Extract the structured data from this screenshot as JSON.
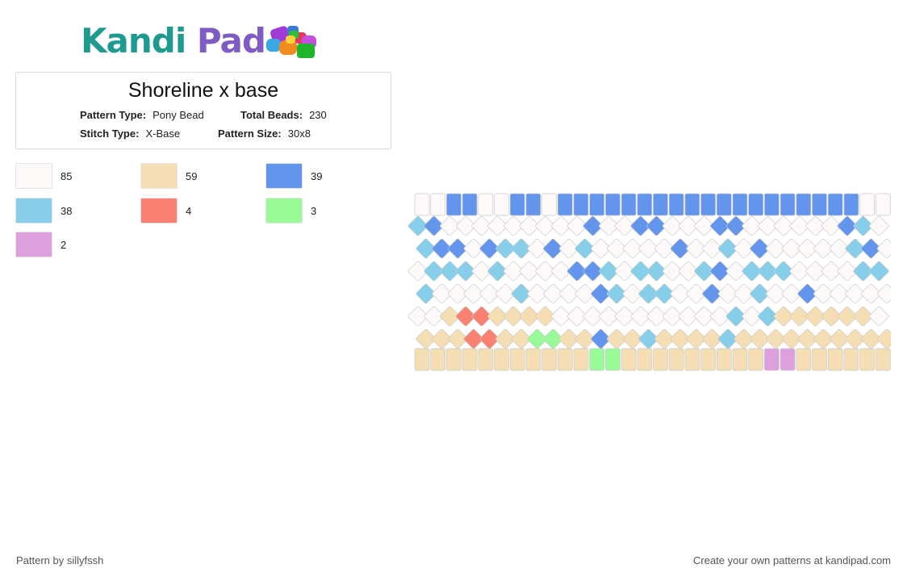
{
  "logo": {
    "part1": "Kandi",
    "part2": "Pad",
    "beads_icon": "bead-pile-icon"
  },
  "pattern_info": {
    "title": "Shoreline x base",
    "pattern_type_label": "Pattern Type:",
    "pattern_type": "Pony Bead",
    "total_beads_label": "Total Beads:",
    "total_beads": "230",
    "stitch_type_label": "Stitch Type:",
    "stitch_type": "X-Base",
    "pattern_size_label": "Pattern Size:",
    "pattern_size": "30x8"
  },
  "palette": [
    {
      "name": "white",
      "color": "#fdf9f9",
      "count": "85"
    },
    {
      "name": "tan",
      "color": "#f5deb3",
      "count": "59"
    },
    {
      "name": "blue",
      "color": "#6495ed",
      "count": "39"
    },
    {
      "name": "light-blue",
      "color": "#87ceeb",
      "count": "38"
    },
    {
      "name": "salmon",
      "color": "#fa8072",
      "count": "4"
    },
    {
      "name": "light-green",
      "color": "#98fb98",
      "count": "3"
    },
    {
      "name": "plum",
      "color": "#dda0dd",
      "count": "2"
    }
  ],
  "footer": {
    "left": "Pattern by sillyfssh",
    "right": "Create your own patterns at kandipad.com"
  }
}
